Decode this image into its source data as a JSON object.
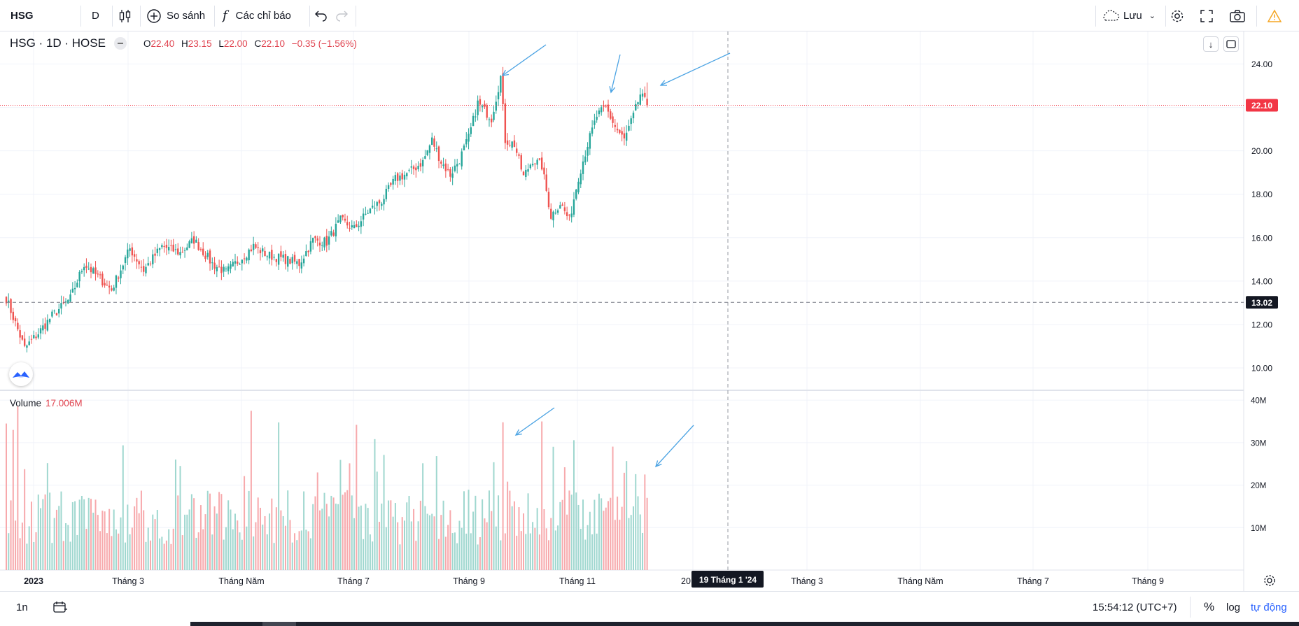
{
  "toolbar": {
    "symbol": "HSG",
    "interval": "D",
    "compare_label": "So sánh",
    "indicators_label": "Các chỉ báo",
    "save_label": "Lưu"
  },
  "legend": {
    "title": "HSG · 1D · HOSE",
    "open_key": "O",
    "open": "22.40",
    "high_key": "H",
    "high": "23.15",
    "low_key": "L",
    "low": "22.00",
    "close_key": "C",
    "close": "22.10",
    "change": "−0.35 (−1.56%)"
  },
  "volume_legend": {
    "label": "Volume",
    "value": "17.006M"
  },
  "price_axis": {
    "ticks": [
      "24.00",
      "22.10",
      "20.00",
      "18.00",
      "16.00",
      "14.00",
      "13.02",
      "12.00",
      "10.00"
    ],
    "last_price": "22.10",
    "crosshair_price": "13.02"
  },
  "volume_axis": {
    "ticks": [
      "40M",
      "30M",
      "20M",
      "10M"
    ]
  },
  "time_axis": {
    "labels": [
      "2023",
      "Tháng 3",
      "Tháng Năm",
      "Tháng 7",
      "Tháng 9",
      "Tháng 11",
      "20",
      "Tháng 3",
      "Tháng Năm",
      "Tháng 7",
      "Tháng 9"
    ],
    "crosshair_date": "19 Tháng 1 '24"
  },
  "bottom_bar": {
    "range": "1n",
    "time": "15:54:12 (UTC+7)",
    "percent": "%",
    "log": "log",
    "auto": "tự động"
  },
  "colors": {
    "up": "#26a69a",
    "down": "#ef5350",
    "up_volume": "#9fd7cf",
    "down_volume": "#f7a9ac",
    "annotation": "#4ba3e3",
    "last_price": "#f23645"
  },
  "chart_data": {
    "type": "candlestick",
    "symbol": "HSG",
    "interval": "1D",
    "exchange": "HOSE",
    "price_range": [
      9,
      25.5
    ],
    "volume_range_m": [
      0,
      42
    ],
    "keypoints_close": [
      {
        "t": 0,
        "v": 13.2
      },
      {
        "t": 8,
        "v": 10.9
      },
      {
        "t": 14,
        "v": 11.6
      },
      {
        "t": 20,
        "v": 12.4
      },
      {
        "t": 28,
        "v": 13.2
      },
      {
        "t": 34,
        "v": 14.8
      },
      {
        "t": 40,
        "v": 14.2
      },
      {
        "t": 46,
        "v": 13.6
      },
      {
        "t": 54,
        "v": 15.5
      },
      {
        "t": 60,
        "v": 14.5
      },
      {
        "t": 68,
        "v": 15.6
      },
      {
        "t": 76,
        "v": 15.3
      },
      {
        "t": 82,
        "v": 15.9
      },
      {
        "t": 90,
        "v": 14.8
      },
      {
        "t": 96,
        "v": 14.4
      },
      {
        "t": 102,
        "v": 15.0
      },
      {
        "t": 108,
        "v": 15.6
      },
      {
        "t": 114,
        "v": 15.2
      },
      {
        "t": 122,
        "v": 15.0
      },
      {
        "t": 128,
        "v": 14.8
      },
      {
        "t": 134,
        "v": 15.9
      },
      {
        "t": 140,
        "v": 15.8
      },
      {
        "t": 146,
        "v": 16.8
      },
      {
        "t": 152,
        "v": 16.4
      },
      {
        "t": 158,
        "v": 17.2
      },
      {
        "t": 164,
        "v": 17.7
      },
      {
        "t": 170,
        "v": 18.7
      },
      {
        "t": 176,
        "v": 19.0
      },
      {
        "t": 182,
        "v": 19.5
      },
      {
        "t": 186,
        "v": 20.5
      },
      {
        "t": 190,
        "v": 19.5
      },
      {
        "t": 194,
        "v": 18.9
      },
      {
        "t": 198,
        "v": 19.6
      },
      {
        "t": 202,
        "v": 20.6
      },
      {
        "t": 206,
        "v": 22.2
      },
      {
        "t": 212,
        "v": 21.5
      },
      {
        "t": 216,
        "v": 23.4
      },
      {
        "t": 218,
        "v": 20.5
      },
      {
        "t": 222,
        "v": 20.3
      },
      {
        "t": 226,
        "v": 18.8
      },
      {
        "t": 230,
        "v": 19.6
      },
      {
        "t": 234,
        "v": 19.3
      },
      {
        "t": 238,
        "v": 17.0
      },
      {
        "t": 242,
        "v": 17.6
      },
      {
        "t": 246,
        "v": 16.8
      },
      {
        "t": 250,
        "v": 18.8
      },
      {
        "t": 254,
        "v": 20.3
      },
      {
        "t": 258,
        "v": 21.6
      },
      {
        "t": 262,
        "v": 22.0
      },
      {
        "t": 266,
        "v": 21.1
      },
      {
        "t": 270,
        "v": 20.5
      },
      {
        "t": 274,
        "v": 21.6
      },
      {
        "t": 277,
        "v": 22.6
      },
      {
        "t": 280,
        "v": 22.1
      }
    ],
    "last_bar": {
      "open": 22.4,
      "high": 23.15,
      "low": 22.0,
      "close": 22.1,
      "volume": "17.006M"
    },
    "annotations": "blue arrows pointing to price peaks and volume spikes",
    "grid": true
  }
}
